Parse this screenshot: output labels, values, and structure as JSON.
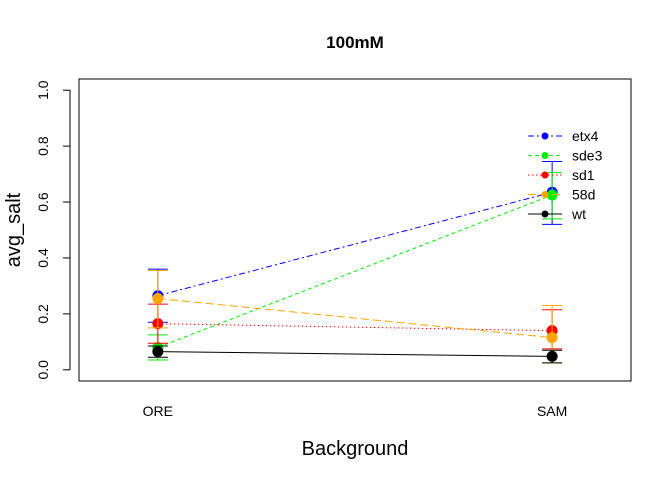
{
  "chart_data": {
    "type": "line",
    "title": "100mM",
    "xlabel": "Background",
    "ylabel": "avg_salt",
    "categories": [
      "ORE",
      "SAM"
    ],
    "xlim": [
      0.8,
      2.2
    ],
    "ylim": [
      -0.04,
      1.04
    ],
    "yticks": [
      "0.0",
      "0.2",
      "0.4",
      "0.6",
      "0.8",
      "1.0"
    ],
    "grid": false,
    "legend_position": "top-right",
    "series": [
      {
        "name": "etx4",
        "color": "#0000ff",
        "dash": "6,3,2,3",
        "values": [
          0.265,
          0.635
        ],
        "err_low": [
          0.17,
          0.52
        ],
        "err_high": [
          0.36,
          0.745
        ]
      },
      {
        "name": "sde3",
        "color": "#00ee00",
        "dash": "4,3",
        "values": [
          0.08,
          0.625
        ],
        "err_low": [
          0.035,
          0.54
        ],
        "err_high": [
          0.125,
          0.705
        ]
      },
      {
        "name": "sd1",
        "color": "#ff0000",
        "dash": "1.5,2.5",
        "values": [
          0.165,
          0.14
        ],
        "err_low": [
          0.095,
          0.075
        ],
        "err_high": [
          0.235,
          0.215
        ]
      },
      {
        "name": "58d",
        "color": "#ffa500",
        "dash": "8,4",
        "values": [
          0.255,
          0.115
        ],
        "err_low": [
          0.15,
          0.025
        ],
        "err_high": [
          0.355,
          0.23
        ]
      },
      {
        "name": "wt",
        "color": "#000000",
        "dash": "",
        "values": [
          0.065,
          0.048
        ],
        "err_low": [
          0.045,
          0.025
        ],
        "err_high": [
          0.085,
          0.07
        ]
      }
    ]
  }
}
